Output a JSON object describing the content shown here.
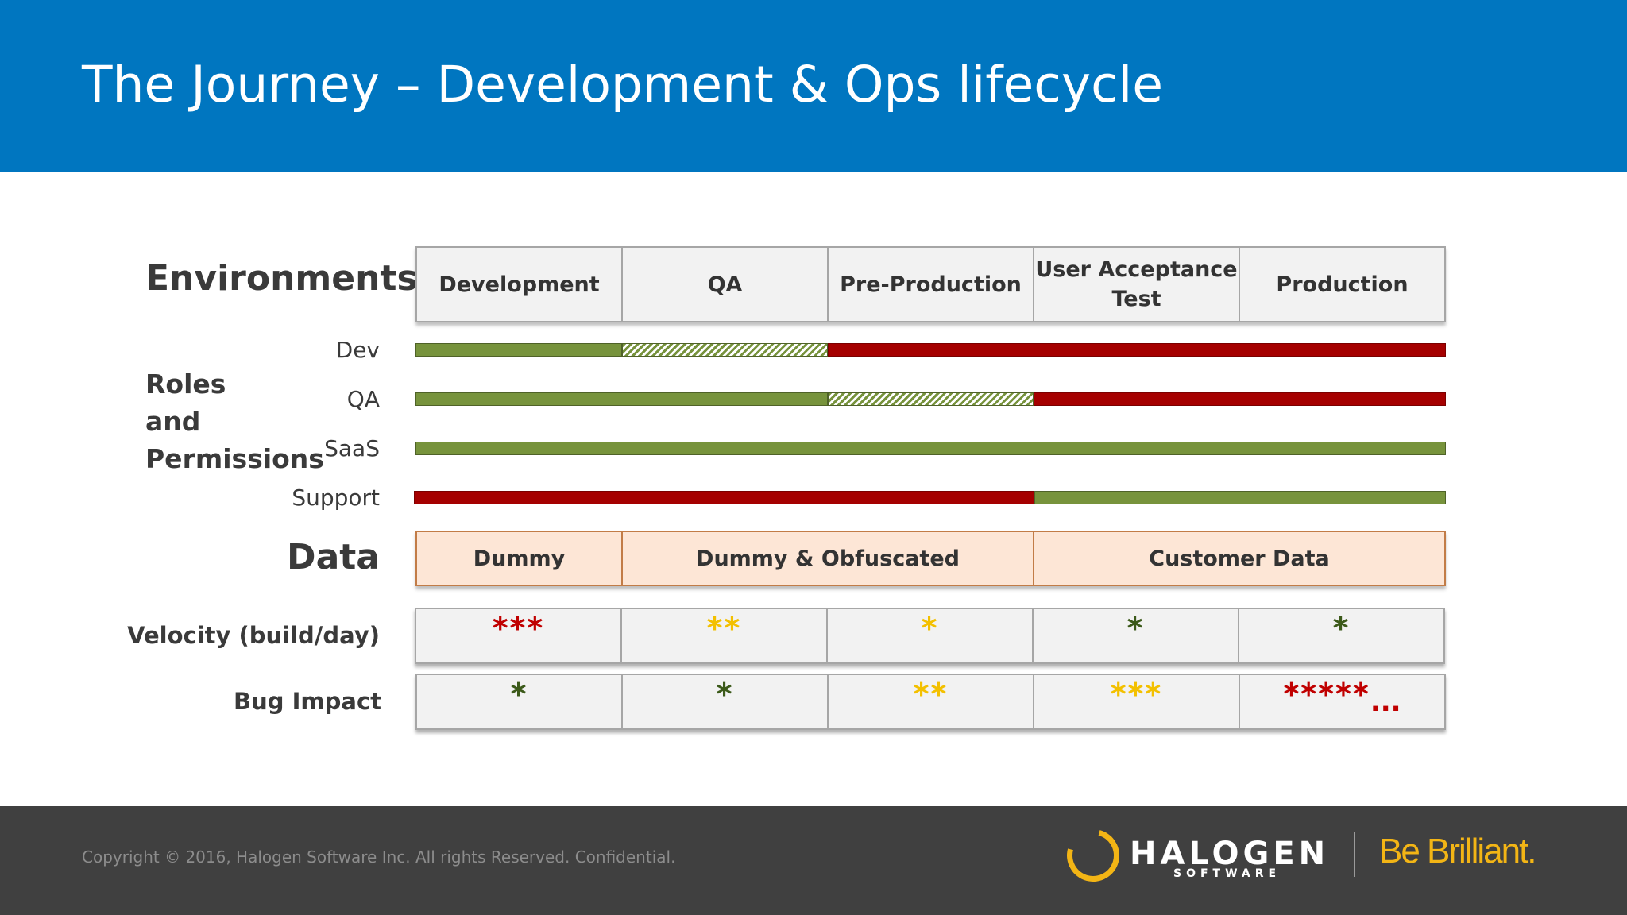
{
  "slide": {
    "title": "The Journey – Development & Ops lifecycle"
  },
  "labels": {
    "environments": "Environments",
    "roles": [
      "Roles",
      "and",
      "Permissions"
    ],
    "data": "Data",
    "velocity": "Velocity (build/day)",
    "bug_impact": "Bug Impact"
  },
  "environments": [
    "Development",
    "QA",
    "Pre-Production",
    "User Acceptance Test",
    "Production"
  ],
  "roles": [
    {
      "name": "Dev",
      "segments": [
        {
          "type": "green",
          "span": 1
        },
        {
          "type": "hatch",
          "span": 1
        },
        {
          "type": "red",
          "span": 3
        }
      ]
    },
    {
      "name": "QA",
      "segments": [
        {
          "type": "green",
          "span": 2
        },
        {
          "type": "hatch",
          "span": 1
        },
        {
          "type": "red",
          "span": 2
        }
      ]
    },
    {
      "name": "SaaS",
      "segments": [
        {
          "type": "green",
          "span": 5
        }
      ]
    },
    {
      "name": "Support",
      "segments": [
        {
          "type": "red",
          "span": 3
        },
        {
          "type": "green",
          "span": 2
        }
      ]
    }
  ],
  "data_types": [
    {
      "label": "Dummy",
      "span": 1
    },
    {
      "label": "Dummy & Obfuscated",
      "span": 2
    },
    {
      "label": "Customer Data",
      "span": 2
    }
  ],
  "velocity": [
    {
      "stars": "***",
      "color": "#c00000"
    },
    {
      "stars": "**",
      "color": "#f3c000"
    },
    {
      "stars": "*",
      "color": "#f3c000"
    },
    {
      "stars": "*",
      "color": "#3c5a1a"
    },
    {
      "stars": "*",
      "color": "#3c5a1a"
    }
  ],
  "bug_impact": [
    {
      "stars": "*",
      "color": "#3c5a1a"
    },
    {
      "stars": "*",
      "color": "#3c5a1a"
    },
    {
      "stars": "**",
      "color": "#f3c000"
    },
    {
      "stars": "***",
      "color": "#f3c000"
    },
    {
      "stars": "*****",
      "color": "#c00000",
      "suffix": "..."
    }
  ],
  "footer": {
    "copyright": "Copyright © 2016, Halogen Software Inc. All rights Reserved. Confidential.",
    "logo_name": "HALOGEN",
    "logo_sub": "SOFTWARE",
    "tagline": "Be Brilliant."
  },
  "colors": {
    "header_blue": "#0076c0",
    "bar_green": "#77933c",
    "bar_red": "#a50000",
    "data_fill": "#fde6d6",
    "footer_gray": "#404040",
    "brand_gold": "#f3b515"
  }
}
